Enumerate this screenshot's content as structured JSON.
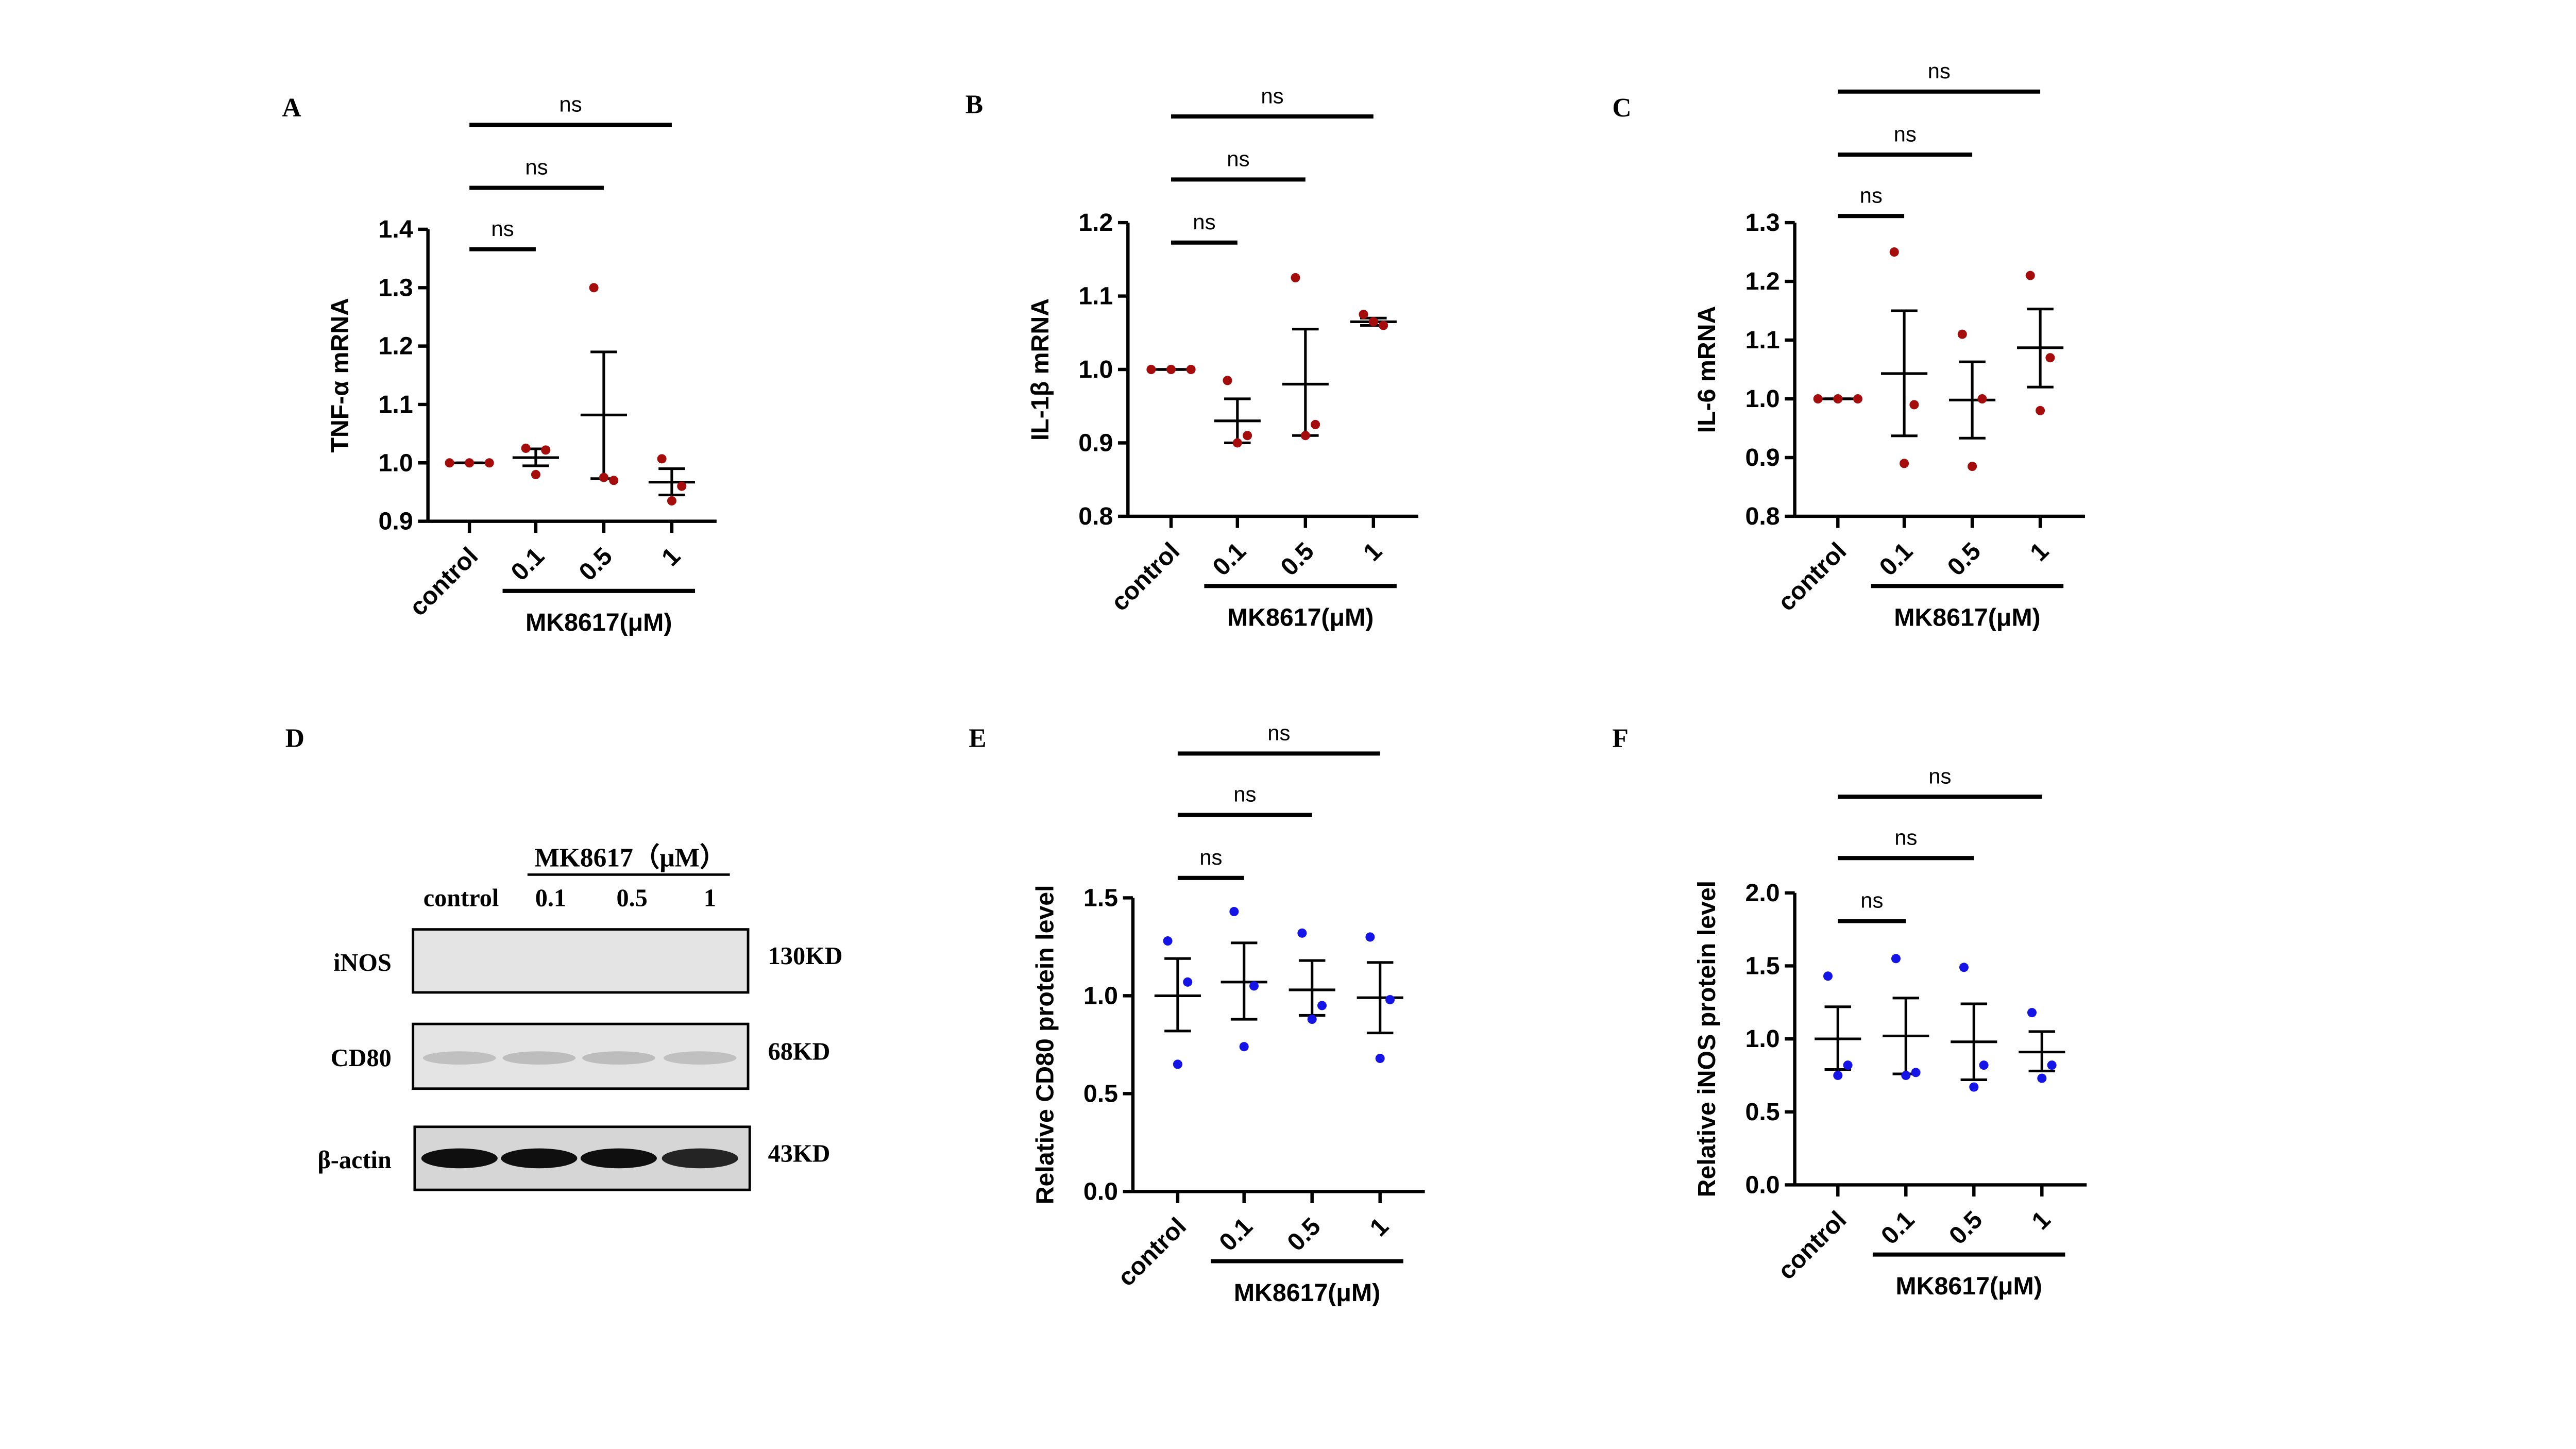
{
  "colors": {
    "mrna_points": "#a50d0d",
    "protein_points": "#1414e6",
    "lines": "#000000"
  },
  "chart_data": [
    {
      "panel": "A",
      "type": "scatter",
      "ylabel": "TNF-α mRNA",
      "ylim": [
        0.9,
        1.4
      ],
      "yticks": [
        "0.9",
        "1.0",
        "1.1",
        "1.2",
        "1.3",
        "1.4"
      ],
      "categories": [
        "control",
        "0.1",
        "0.5",
        "1"
      ],
      "group_label": "MK8617(μM)",
      "point_color": "mrna_points",
      "points": [
        [
          1.0,
          1.0,
          1.0
        ],
        [
          1.025,
          1.022,
          0.98
        ],
        [
          1.3,
          0.97,
          0.975
        ],
        [
          1.007,
          0.96,
          0.935
        ]
      ],
      "mean": [
        1.0,
        1.009,
        1.082,
        0.967
      ],
      "err_low": [
        1.0,
        0.995,
        0.973,
        0.945
      ],
      "err_high": [
        1.0,
        1.024,
        1.19,
        0.99
      ],
      "significance": [
        "ns",
        "ns",
        "ns"
      ]
    },
    {
      "panel": "B",
      "type": "scatter",
      "ylabel": "IL-1β mRNA",
      "ylim": [
        0.8,
        1.2
      ],
      "yticks": [
        "0.8",
        "0.9",
        "1.0",
        "1.1",
        "1.2"
      ],
      "categories": [
        "control",
        "0.1",
        "0.5",
        "1"
      ],
      "group_label": "MK8617(μM)",
      "point_color": "mrna_points",
      "points": [
        [
          1.0,
          1.0,
          1.0
        ],
        [
          0.985,
          0.91,
          0.9
        ],
        [
          1.125,
          0.925,
          0.91
        ],
        [
          1.075,
          1.06,
          1.065
        ]
      ],
      "mean": [
        1.0,
        0.93,
        0.98,
        1.065
      ],
      "err_low": [
        1.0,
        0.9,
        0.91,
        1.06
      ],
      "err_high": [
        1.0,
        0.96,
        1.055,
        1.07
      ],
      "significance": [
        "ns",
        "ns",
        "ns"
      ]
    },
    {
      "panel": "C",
      "type": "scatter",
      "ylabel": "IL-6 mRNA",
      "ylim": [
        0.8,
        1.3
      ],
      "yticks": [
        "0.8",
        "0.9",
        "1.0",
        "1.1",
        "1.2",
        "1.3"
      ],
      "categories": [
        "control",
        "0.1",
        "0.5",
        "1"
      ],
      "group_label": "MK8617(μM)",
      "point_color": "mrna_points",
      "points": [
        [
          1.0,
          1.0,
          1.0
        ],
        [
          1.25,
          0.99,
          0.89
        ],
        [
          1.11,
          1.0,
          0.885
        ],
        [
          1.21,
          1.07,
          0.98
        ]
      ],
      "mean": [
        1.0,
        1.043,
        0.998,
        1.087
      ],
      "err_low": [
        1.0,
        0.937,
        0.933,
        1.02
      ],
      "err_high": [
        1.0,
        1.15,
        1.063,
        1.153
      ],
      "significance": [
        "ns",
        "ns",
        "ns"
      ]
    },
    {
      "panel": "E",
      "type": "scatter",
      "ylabel": "Relative CD80 protein level",
      "ylim": [
        0.0,
        1.5
      ],
      "yticks": [
        "0.0",
        "0.5",
        "1.0",
        "1.5"
      ],
      "categories": [
        "control",
        "0.1",
        "0.5",
        "1"
      ],
      "group_label": "MK8617(μM)",
      "point_color": "protein_points",
      "points": [
        [
          1.28,
          1.07,
          0.65
        ],
        [
          1.43,
          1.05,
          0.74
        ],
        [
          1.32,
          0.95,
          0.88
        ],
        [
          1.3,
          0.98,
          0.68
        ]
      ],
      "mean": [
        1.0,
        1.07,
        1.03,
        0.99
      ],
      "err_low": [
        0.82,
        0.88,
        0.9,
        0.81
      ],
      "err_high": [
        1.19,
        1.27,
        1.18,
        1.17
      ],
      "significance": [
        "ns",
        "ns",
        "ns"
      ]
    },
    {
      "panel": "F",
      "type": "scatter",
      "ylabel": "Relative iNOS protein level",
      "ylim": [
        0.0,
        2.0
      ],
      "yticks": [
        "0.0",
        "0.5",
        "1.0",
        "1.5",
        "2.0"
      ],
      "categories": [
        "control",
        "0.1",
        "0.5",
        "1"
      ],
      "group_label": "MK8617(μM)",
      "point_color": "protein_points",
      "points": [
        [
          1.43,
          0.82,
          0.75
        ],
        [
          1.55,
          0.77,
          0.75
        ],
        [
          1.49,
          0.82,
          0.67
        ],
        [
          1.18,
          0.82,
          0.73
        ]
      ],
      "mean": [
        1.0,
        1.02,
        0.98,
        0.91
      ],
      "err_low": [
        0.79,
        0.76,
        0.72,
        0.78
      ],
      "err_high": [
        1.22,
        1.28,
        1.24,
        1.05
      ],
      "significance": [
        "ns",
        "ns",
        "ns"
      ]
    }
  ],
  "blot": {
    "panel": "D",
    "header": "MK8617（μM）",
    "lanes": [
      "control",
      "0.1",
      "0.5",
      "1"
    ],
    "rows": [
      {
        "protein": "iNOS",
        "size": "130KD",
        "band_intensity": [
          0.0,
          0.0,
          0.0,
          0.0
        ]
      },
      {
        "protein": "CD80",
        "size": "68KD",
        "band_intensity": [
          0.2,
          0.22,
          0.22,
          0.2
        ]
      },
      {
        "protein": "β-actin",
        "size": "43KD",
        "band_intensity": [
          1.0,
          1.0,
          1.0,
          0.9
        ]
      }
    ]
  }
}
